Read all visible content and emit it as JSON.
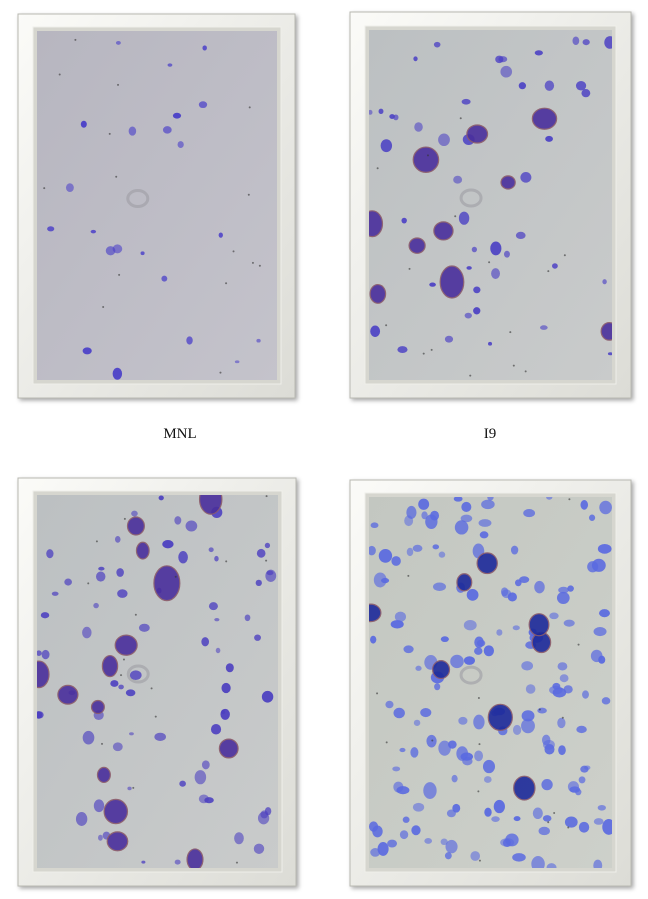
{
  "labels": [
    "MNL",
    "I9"
  ]
}
